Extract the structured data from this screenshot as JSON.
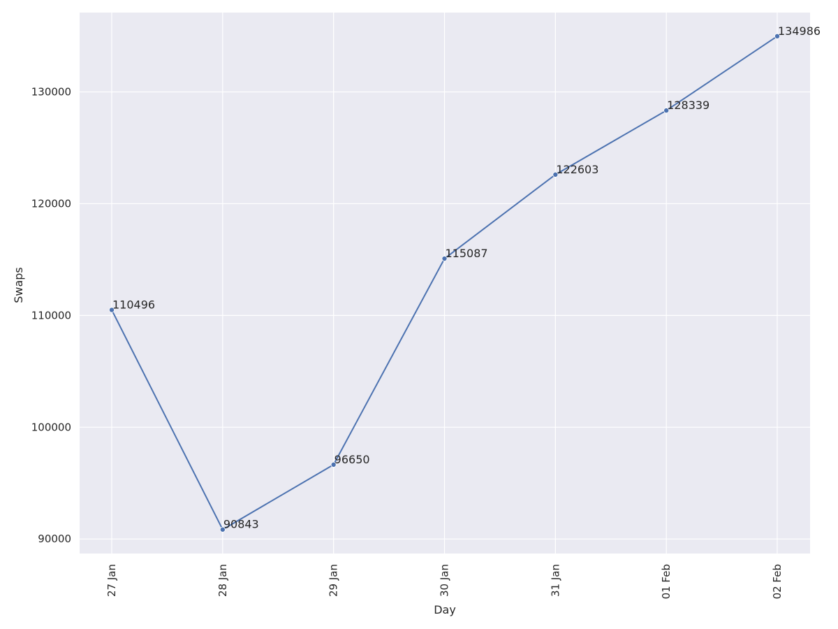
{
  "chart_data": {
    "type": "line",
    "title": "",
    "xlabel": "Day",
    "ylabel": "Swaps",
    "categories": [
      "27 Jan",
      "28 Jan",
      "29 Jan",
      "30 Jan",
      "31 Jan",
      "01 Feb",
      "02 Feb"
    ],
    "series": [
      {
        "values": [
          110496,
          90843,
          96650,
          115087,
          122603,
          128339,
          134986
        ],
        "data_labels": [
          "110496",
          "90843",
          "96650",
          "115087",
          "122603",
          "128339",
          "134986"
        ]
      }
    ],
    "ylim": [
      88700,
      137100
    ],
    "yticks": [
      90000,
      100000,
      110000,
      120000,
      130000
    ],
    "ytick_labels": [
      "90000",
      "100000",
      "110000",
      "120000",
      "130000"
    ],
    "grid": true,
    "legend": "none",
    "x_tick_rotation": "vertical",
    "colors": {
      "background": "#eaeaf2",
      "grid": "#ffffff",
      "line": "#4c72b0",
      "text": "#262626"
    }
  }
}
